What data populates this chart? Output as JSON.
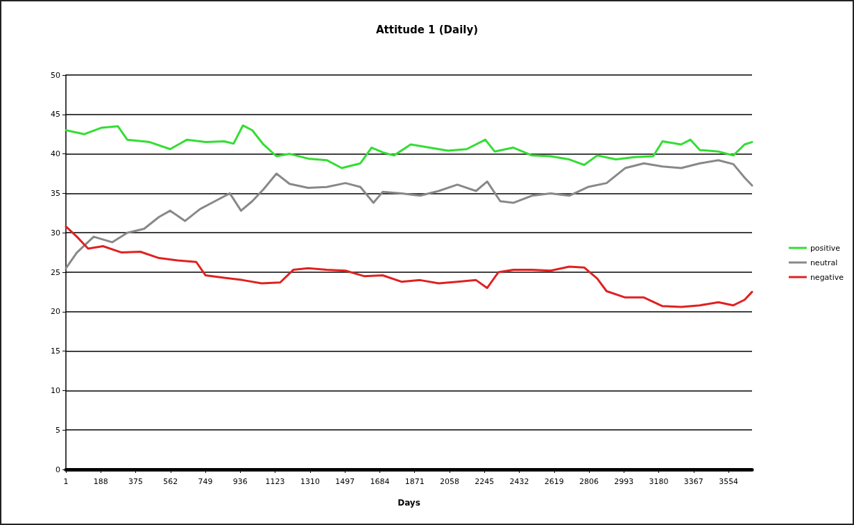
{
  "chart_data": {
    "type": "line",
    "title": "Attitude 1 (Daily)",
    "xlabel": "Days",
    "xlim": [
      1,
      3680
    ],
    "xticks": [
      1,
      188,
      375,
      562,
      749,
      936,
      1123,
      1310,
      1497,
      1684,
      1871,
      2058,
      2245,
      2432,
      2619,
      2806,
      2993,
      3180,
      3367,
      3554
    ],
    "ylim": [
      0,
      50
    ],
    "yticks": [
      0,
      5,
      10,
      15,
      20,
      25,
      30,
      35,
      40,
      45,
      50
    ],
    "grid": "y",
    "legend": "right",
    "marker": "none",
    "line_style": "solid",
    "series": [
      {
        "name": "positive",
        "color": "#33dd33",
        "x": [
          1,
          100,
          190,
          280,
          330,
          450,
          560,
          650,
          750,
          850,
          900,
          950,
          1000,
          1060,
          1130,
          1200,
          1300,
          1400,
          1480,
          1580,
          1640,
          1700,
          1760,
          1850,
          1950,
          2050,
          2150,
          2250,
          2300,
          2400,
          2500,
          2600,
          2700,
          2780,
          2850,
          2950,
          3050,
          3150,
          3200,
          3300,
          3350,
          3400,
          3500,
          3580,
          3640,
          3680
        ],
        "values": [
          43.0,
          42.5,
          43.3,
          43.5,
          41.8,
          41.5,
          40.6,
          41.8,
          41.5,
          41.6,
          41.3,
          43.6,
          43.0,
          41.2,
          39.7,
          40.0,
          39.4,
          39.2,
          38.2,
          38.8,
          40.8,
          40.2,
          39.8,
          41.2,
          40.8,
          40.4,
          40.6,
          41.8,
          40.3,
          40.8,
          39.8,
          39.7,
          39.3,
          38.6,
          39.8,
          39.3,
          39.6,
          39.7,
          41.6,
          41.2,
          41.8,
          40.5,
          40.3,
          39.8,
          41.2,
          41.5
        ]
      },
      {
        "name": "neutral",
        "color": "#888888",
        "x": [
          1,
          60,
          150,
          250,
          330,
          420,
          500,
          560,
          640,
          720,
          800,
          880,
          940,
          1000,
          1060,
          1130,
          1200,
          1300,
          1400,
          1500,
          1580,
          1650,
          1700,
          1800,
          1900,
          2000,
          2100,
          2200,
          2260,
          2330,
          2400,
          2500,
          2600,
          2700,
          2800,
          2900,
          3000,
          3100,
          3200,
          3300,
          3400,
          3500,
          3580,
          3640,
          3680
        ],
        "values": [
          25.5,
          27.5,
          29.5,
          28.8,
          30.0,
          30.5,
          32.0,
          32.8,
          31.5,
          33.0,
          34.0,
          35.0,
          32.8,
          34.0,
          35.5,
          37.5,
          36.2,
          35.7,
          35.8,
          36.3,
          35.8,
          33.8,
          35.2,
          35.0,
          34.7,
          35.3,
          36.1,
          35.3,
          36.5,
          34.0,
          33.8,
          34.7,
          35.0,
          34.7,
          35.8,
          36.3,
          38.2,
          38.8,
          38.4,
          38.2,
          38.8,
          39.2,
          38.7,
          37.0,
          36.0
        ]
      },
      {
        "name": "negative",
        "color": "#e02020",
        "x": [
          1,
          60,
          120,
          200,
          300,
          400,
          500,
          600,
          700,
          750,
          850,
          950,
          1050,
          1150,
          1220,
          1300,
          1400,
          1500,
          1600,
          1700,
          1800,
          1900,
          2000,
          2100,
          2200,
          2260,
          2320,
          2400,
          2500,
          2600,
          2700,
          2780,
          2850,
          2900,
          3000,
          3100,
          3200,
          3300,
          3400,
          3500,
          3580,
          3640,
          3680
        ],
        "values": [
          30.8,
          29.5,
          28.0,
          28.3,
          27.5,
          27.6,
          26.8,
          26.5,
          26.3,
          24.6,
          24.3,
          24.0,
          23.6,
          23.7,
          25.3,
          25.5,
          25.3,
          25.2,
          24.5,
          24.6,
          23.8,
          24.0,
          23.6,
          23.8,
          24.0,
          23.0,
          25.0,
          25.3,
          25.3,
          25.2,
          25.7,
          25.6,
          24.2,
          22.6,
          21.8,
          21.8,
          20.7,
          20.6,
          20.8,
          21.2,
          20.8,
          21.5,
          22.5
        ]
      }
    ]
  }
}
